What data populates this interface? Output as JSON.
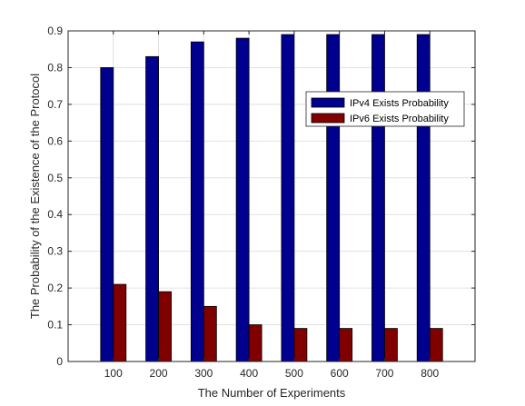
{
  "chart_data": {
    "type": "bar",
    "title": "",
    "xlabel": "The Number of Experiments",
    "ylabel": "The Probability of the Existence of the Protocol",
    "categories": [
      "100",
      "200",
      "300",
      "400",
      "500",
      "600",
      "700",
      "800"
    ],
    "series": [
      {
        "name": "IPv4 Exists Probability",
        "color": "#00008f",
        "values": [
          0.8,
          0.83,
          0.87,
          0.88,
          0.89,
          0.89,
          0.89,
          0.89
        ]
      },
      {
        "name": "IPv6 Exists Probability",
        "color": "#800000",
        "values": [
          0.21,
          0.19,
          0.15,
          0.1,
          0.09,
          0.09,
          0.09,
          0.09
        ]
      }
    ],
    "ylim": [
      0,
      0.9
    ],
    "yticks": [
      "0",
      "0.1",
      "0.2",
      "0.3",
      "0.4",
      "0.5",
      "0.6",
      "0.7",
      "0.8",
      "0.9"
    ],
    "grid": true,
    "legend_position": "top-right"
  }
}
